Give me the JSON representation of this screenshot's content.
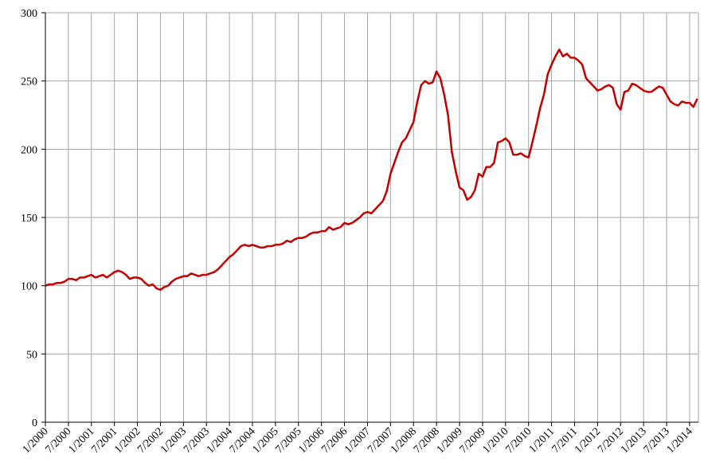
{
  "chart_data": {
    "type": "line",
    "categories": [
      "1/2000",
      null,
      null,
      null,
      null,
      null,
      "7/2000",
      null,
      null,
      null,
      null,
      null,
      "1/2001",
      null,
      null,
      null,
      null,
      null,
      "7/2001",
      null,
      null,
      null,
      null,
      null,
      "1/2002",
      null,
      null,
      null,
      null,
      null,
      "7/2002",
      null,
      null,
      null,
      null,
      null,
      "1/2003",
      null,
      null,
      null,
      null,
      null,
      "7/2003",
      null,
      null,
      null,
      null,
      null,
      "1/2004",
      null,
      null,
      null,
      null,
      null,
      "7/2004",
      null,
      null,
      null,
      null,
      null,
      "1/2005",
      null,
      null,
      null,
      null,
      null,
      "7/2005",
      null,
      null,
      null,
      null,
      null,
      "1/2006",
      null,
      null,
      null,
      null,
      null,
      "7/2006",
      null,
      null,
      null,
      null,
      null,
      "1/2007",
      null,
      null,
      null,
      null,
      null,
      "7/2007",
      null,
      null,
      null,
      null,
      null,
      "1/2008",
      null,
      null,
      null,
      null,
      null,
      "7/2008",
      null,
      null,
      null,
      null,
      null,
      "1/2009",
      null,
      null,
      null,
      null,
      null,
      "7/2009",
      null,
      null,
      null,
      null,
      null,
      "1/2010",
      null,
      null,
      null,
      null,
      null,
      "7/2010",
      null,
      null,
      null,
      null,
      null,
      "1/2011",
      null,
      null,
      null,
      null,
      null,
      "7/2011",
      null,
      null,
      null,
      null,
      null,
      "1/2012",
      null,
      null,
      null,
      null,
      null,
      "7/2012",
      null,
      null,
      null,
      null,
      null,
      "1/2013",
      null,
      null,
      null,
      null,
      null,
      "7/2013",
      null,
      null,
      null,
      null,
      null,
      "1/2014",
      null,
      null
    ],
    "values": [
      100,
      101,
      101,
      102,
      102,
      103,
      105,
      105,
      104,
      106,
      106,
      107,
      108,
      106,
      107,
      108,
      106,
      108,
      110,
      111,
      110,
      108,
      105,
      106,
      106,
      105,
      102,
      100,
      101,
      98,
      97,
      99,
      100,
      103,
      105,
      106,
      107,
      107,
      109,
      108,
      107,
      108,
      108,
      109,
      110,
      112,
      115,
      118,
      121,
      123,
      126,
      129,
      130,
      129,
      130,
      129,
      128,
      128,
      129,
      129,
      130,
      130,
      131,
      133,
      132,
      134,
      135,
      135,
      136,
      138,
      139,
      139,
      140,
      140,
      143,
      141,
      142,
      143,
      146,
      145,
      146,
      148,
      150,
      153,
      154,
      153,
      156,
      159,
      162,
      169,
      182,
      190,
      198,
      205,
      208,
      214,
      220,
      235,
      247,
      250,
      248,
      249,
      257,
      252,
      240,
      225,
      198,
      184,
      172,
      170,
      163,
      165,
      170,
      182,
      180,
      187,
      187,
      190,
      205,
      206,
      208,
      205,
      196,
      196,
      197,
      195,
      194,
      205,
      217,
      230,
      240,
      255,
      262,
      268,
      273,
      268,
      270,
      267,
      267,
      265,
      262,
      252,
      249,
      246,
      243,
      244,
      246,
      247,
      245,
      233,
      229,
      242,
      243,
      248,
      247,
      245,
      243,
      242,
      242,
      244,
      246,
      245,
      240,
      235,
      233,
      232,
      235,
      234,
      234,
      231,
      237
    ],
    "color": "#c00000",
    "ylim": [
      0,
      300
    ],
    "yticks": [
      0,
      50,
      100,
      150,
      200,
      250,
      300
    ],
    "grid": true
  }
}
